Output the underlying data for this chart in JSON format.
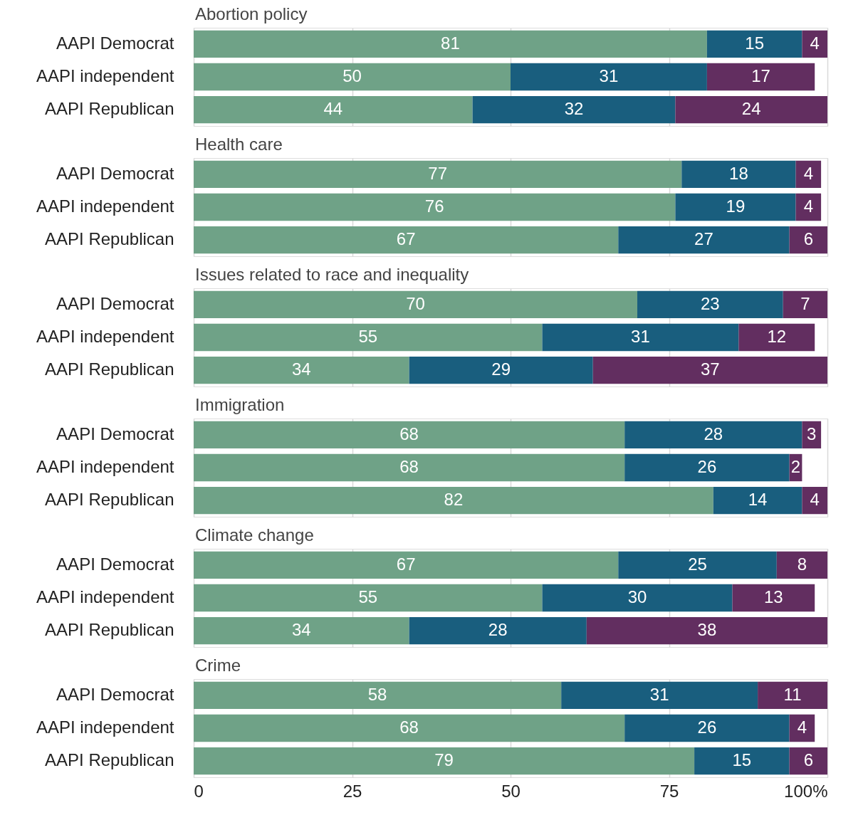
{
  "chart_data": [
    {
      "type": "bar",
      "title": "Abortion policy",
      "categories": [
        "AAPI Democrat",
        "AAPI independent",
        "AAPI Republican"
      ],
      "stacked": true,
      "orientation": "horizontal",
      "data_labels": true,
      "grid": "x",
      "tick_labels": "y",
      "xlim": [
        0,
        100
      ],
      "series": [
        {
          "color": "#6fa287",
          "values": [
            81,
            50,
            44
          ]
        },
        {
          "color": "#195e7e",
          "values": [
            15,
            31,
            32
          ]
        },
        {
          "color": "#622e60",
          "values": [
            4,
            17,
            24
          ]
        }
      ]
    },
    {
      "type": "bar",
      "title": "Health care",
      "categories": [
        "AAPI Democrat",
        "AAPI independent",
        "AAPI Republican"
      ],
      "stacked": true,
      "orientation": "horizontal",
      "data_labels": true,
      "grid": "x",
      "tick_labels": "y",
      "xlim": [
        0,
        100
      ],
      "series": [
        {
          "color": "#6fa287",
          "values": [
            77,
            76,
            67
          ]
        },
        {
          "color": "#195e7e",
          "values": [
            18,
            19,
            27
          ]
        },
        {
          "color": "#622e60",
          "values": [
            4,
            4,
            6
          ]
        }
      ]
    },
    {
      "type": "bar",
      "title": "Issues related to race and inequality",
      "categories": [
        "AAPI Democrat",
        "AAPI independent",
        "AAPI Republican"
      ],
      "stacked": true,
      "orientation": "horizontal",
      "data_labels": true,
      "grid": "x",
      "tick_labels": "y",
      "xlim": [
        0,
        100
      ],
      "series": [
        {
          "color": "#6fa287",
          "values": [
            70,
            55,
            34
          ]
        },
        {
          "color": "#195e7e",
          "values": [
            23,
            31,
            29
          ]
        },
        {
          "color": "#622e60",
          "values": [
            7,
            12,
            37
          ]
        }
      ]
    },
    {
      "type": "bar",
      "title": "Immigration",
      "categories": [
        "AAPI Democrat",
        "AAPI independent",
        "AAPI Republican"
      ],
      "stacked": true,
      "orientation": "horizontal",
      "data_labels": true,
      "grid": "x",
      "tick_labels": "y",
      "xlim": [
        0,
        100
      ],
      "series": [
        {
          "color": "#6fa287",
          "values": [
            68,
            68,
            82
          ]
        },
        {
          "color": "#195e7e",
          "values": [
            28,
            26,
            14
          ]
        },
        {
          "color": "#622e60",
          "values": [
            3,
            2,
            4
          ]
        }
      ]
    },
    {
      "type": "bar",
      "title": "Climate change",
      "categories": [
        "AAPI Democrat",
        "AAPI independent",
        "AAPI Republican"
      ],
      "stacked": true,
      "orientation": "horizontal",
      "data_labels": true,
      "grid": "x",
      "tick_labels": "y",
      "xlim": [
        0,
        100
      ],
      "series": [
        {
          "color": "#6fa287",
          "values": [
            67,
            55,
            34
          ]
        },
        {
          "color": "#195e7e",
          "values": [
            25,
            30,
            28
          ]
        },
        {
          "color": "#622e60",
          "values": [
            8,
            13,
            38
          ]
        }
      ]
    },
    {
      "type": "bar",
      "title": "Crime",
      "categories": [
        "AAPI Democrat",
        "AAPI independent",
        "AAPI Republican"
      ],
      "stacked": true,
      "orientation": "horizontal",
      "data_labels": true,
      "grid": "x",
      "xlim": [
        0,
        100
      ],
      "xticks": [
        0,
        25,
        50,
        75,
        {
          "value": 100,
          "label": "100%"
        }
      ],
      "series": [
        {
          "color": "#6fa287",
          "values": [
            58,
            68,
            79
          ]
        },
        {
          "color": "#195e7e",
          "values": [
            31,
            26,
            15
          ]
        },
        {
          "color": "#622e60",
          "values": [
            11,
            4,
            6
          ]
        }
      ]
    }
  ]
}
